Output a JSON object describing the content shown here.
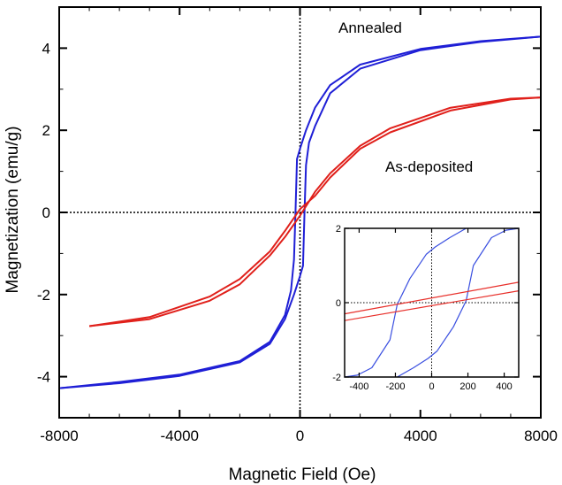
{
  "chart_data": {
    "type": "line",
    "title": "",
    "xlabel": "Magnetic Field (Oe)",
    "ylabel": "Magnetization (emu/g)",
    "xlim": [
      -8000,
      8000
    ],
    "ylim": [
      -5,
      5
    ],
    "xticks": [
      "-8000",
      "-4000",
      "0",
      "4000",
      "8000"
    ],
    "yticks": [
      "4",
      "2",
      "0",
      "-2",
      "-4"
    ],
    "grid": false,
    "zero_lines": "dotted",
    "annotations": [
      "Annealed",
      "As-deposited"
    ],
    "series": [
      {
        "name": "Annealed",
        "color": "#1f1fd6",
        "branches": [
          [
            [
              -8000,
              -4.28
            ],
            [
              -6000,
              -4.13
            ],
            [
              -4000,
              -3.95
            ],
            [
              -2000,
              -3.62
            ],
            [
              -1000,
              -3.15
            ],
            [
              -500,
              -2.5
            ],
            [
              -300,
              -1.9
            ],
            [
              -200,
              -1.15
            ],
            [
              -150,
              0
            ],
            [
              -100,
              1.3
            ],
            [
              0,
              1.55
            ],
            [
              200,
              2.0
            ],
            [
              500,
              2.55
            ],
            [
              1000,
              3.1
            ],
            [
              2000,
              3.6
            ],
            [
              4000,
              3.98
            ],
            [
              6000,
              4.17
            ],
            [
              8000,
              4.28
            ]
          ],
          [
            [
              8000,
              4.28
            ],
            [
              6000,
              4.15
            ],
            [
              4000,
              3.95
            ],
            [
              2000,
              3.5
            ],
            [
              1000,
              2.9
            ],
            [
              500,
              2.1
            ],
            [
              300,
              1.7
            ],
            [
              200,
              1.15
            ],
            [
              150,
              0
            ],
            [
              100,
              -1.3
            ],
            [
              0,
              -1.55
            ],
            [
              -200,
              -2.0
            ],
            [
              -500,
              -2.6
            ],
            [
              -1000,
              -3.2
            ],
            [
              -2000,
              -3.65
            ],
            [
              -4000,
              -3.98
            ],
            [
              -6000,
              -4.16
            ],
            [
              -8000,
              -4.28
            ]
          ]
        ]
      },
      {
        "name": "As-deposited",
        "color": "#e0201b",
        "branches": [
          [
            [
              -7000,
              -2.77
            ],
            [
              -5000,
              -2.6
            ],
            [
              -3000,
              -2.15
            ],
            [
              -2000,
              -1.75
            ],
            [
              -1000,
              -1.05
            ],
            [
              -500,
              -0.6
            ],
            [
              0,
              -0.08
            ],
            [
              500,
              0.5
            ],
            [
              1000,
              0.95
            ],
            [
              2000,
              1.62
            ],
            [
              3000,
              2.05
            ],
            [
              5000,
              2.55
            ],
            [
              7000,
              2.77
            ],
            [
              8000,
              2.8
            ]
          ],
          [
            [
              8000,
              2.8
            ],
            [
              7000,
              2.75
            ],
            [
              5000,
              2.48
            ],
            [
              3000,
              1.95
            ],
            [
              2000,
              1.55
            ],
            [
              1000,
              0.85
            ],
            [
              500,
              0.4
            ],
            [
              0,
              0.08
            ],
            [
              -500,
              -0.45
            ],
            [
              -1000,
              -0.95
            ],
            [
              -2000,
              -1.62
            ],
            [
              -3000,
              -2.05
            ],
            [
              -5000,
              -2.55
            ],
            [
              -7000,
              -2.77
            ]
          ]
        ]
      }
    ],
    "inset": {
      "xlim": [
        -480,
        480
      ],
      "ylim": [
        -2,
        2
      ],
      "xticks": [
        "-400",
        "-200",
        "0",
        "200",
        "400"
      ],
      "yticks": [
        "2",
        "0",
        "-2"
      ],
      "series": [
        {
          "name": "Annealed",
          "color": "#3a4fe0",
          "branches": [
            [
              [
                -480,
                -2.0
              ],
              [
                -410,
                -1.95
              ],
              [
                -330,
                -1.75
              ],
              [
                -230,
                -1.0
              ],
              [
                -190,
                -0.05
              ],
              [
                -120,
                0.65
              ],
              [
                -30,
                1.3
              ],
              [
                20,
                1.5
              ],
              [
                100,
                1.75
              ],
              [
                190,
                2.0
              ]
            ],
            [
              [
                480,
                2.0
              ],
              [
                410,
                1.95
              ],
              [
                330,
                1.75
              ],
              [
                230,
                1.0
              ],
              [
                190,
                0.05
              ],
              [
                120,
                -0.65
              ],
              [
                30,
                -1.3
              ],
              [
                -20,
                -1.5
              ],
              [
                -100,
                -1.75
              ],
              [
                -190,
                -2.0
              ]
            ]
          ]
        },
        {
          "name": "As-deposited",
          "color": "#e8302b",
          "branches": [
            [
              [
                -480,
                -0.3
              ],
              [
                480,
                0.55
              ]
            ],
            [
              [
                -480,
                -0.48
              ],
              [
                480,
                0.32
              ]
            ]
          ]
        }
      ]
    }
  }
}
